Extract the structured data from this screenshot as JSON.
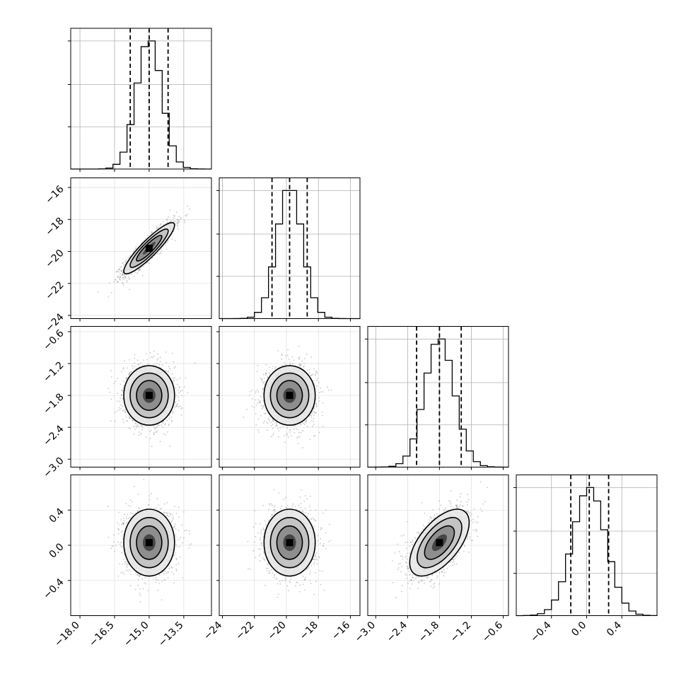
{
  "chart_data": {
    "type": "corner",
    "grid": true,
    "parameters": [
      {
        "ticks": [
          -18.0,
          -16.5,
          -15.0,
          -13.5
        ],
        "tick_labels": [
          "−18.0",
          "−16.5",
          "−15.0",
          "−13.5"
        ],
        "range": [
          -18.4,
          -12.3
        ],
        "mean": -15.0,
        "sd": 0.55,
        "quantiles": [
          -15.82,
          -15.0,
          -14.18
        ]
      },
      {
        "ticks": [
          -24,
          -22,
          -20,
          -18,
          -16
        ],
        "tick_labels": [
          "−24",
          "−22",
          "−20",
          "−18",
          "−16"
        ],
        "range": [
          -24.2,
          -15.4
        ],
        "mean": -19.8,
        "sd": 0.8,
        "quantiles": [
          -20.9,
          -19.8,
          -18.7
        ]
      },
      {
        "ticks": [
          -3.0,
          -2.4,
          -1.8,
          -1.2,
          -0.6
        ],
        "tick_labels": [
          "−3.0",
          "−2.4",
          "−1.8",
          "−1.2",
          "−0.6"
        ],
        "range": [
          -3.15,
          -0.5
        ],
        "mean": -1.8,
        "sd": 0.28,
        "quantiles": [
          -2.23,
          -1.8,
          -1.39
        ]
      },
      {
        "ticks": [
          -0.4,
          0.0,
          0.4
        ],
        "tick_labels": [
          "−0.4",
          "0.0",
          "0.4"
        ],
        "range": [
          -0.8,
          0.8
        ],
        "mean": 0.03,
        "sd": 0.19,
        "quantiles": [
          -0.18,
          0.03,
          0.25
        ]
      }
    ],
    "correlations": [
      [
        1,
        0.9,
        0,
        0
      ],
      [
        0.9,
        1,
        0,
        0
      ],
      [
        0,
        0,
        1,
        0.6
      ],
      [
        0,
        0,
        0.6,
        1
      ]
    ],
    "histogram_bins": 20,
    "contour_levels": [
      0.5,
      1.0,
      1.5,
      2.0
    ]
  }
}
